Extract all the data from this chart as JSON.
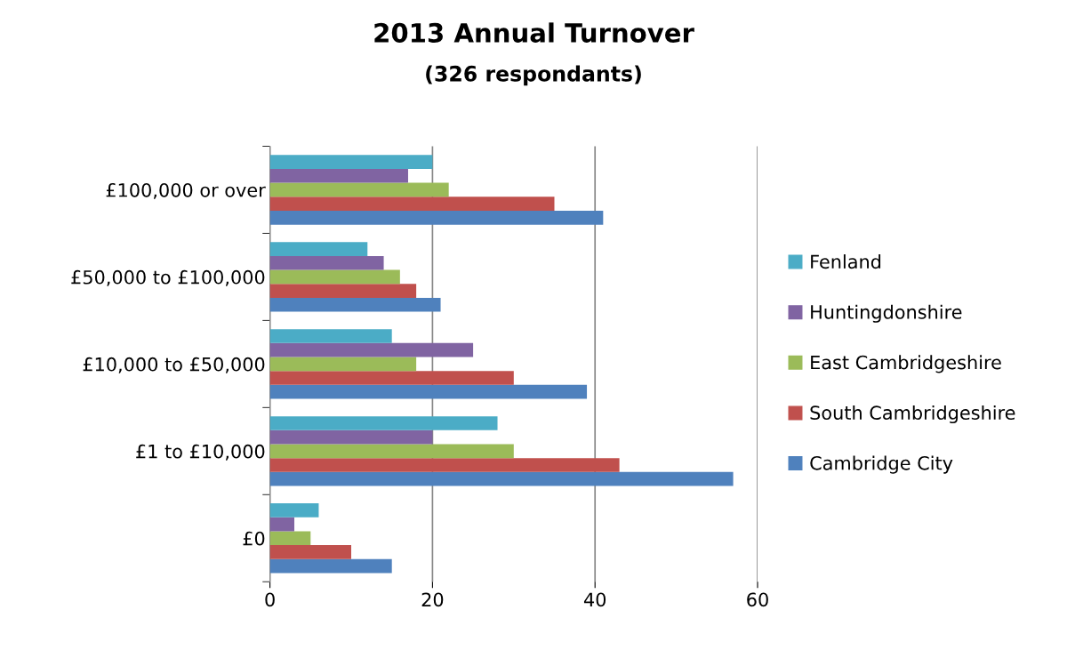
{
  "chart_data": {
    "type": "bar",
    "orientation": "horizontal",
    "title": "2013 Annual Turnover",
    "subtitle": "(326 respondants)",
    "categories": [
      "£100,000 or over",
      "£50,000 to £100,000",
      "£10,000 to £50,000",
      "£1 to £10,000",
      "£0"
    ],
    "series": [
      {
        "name": "Cambridge City",
        "color": "#4f81bd",
        "values": [
          41,
          21,
          39,
          57,
          15
        ]
      },
      {
        "name": "South Cambridgeshire",
        "color": "#c0504d",
        "values": [
          35,
          18,
          30,
          43,
          10
        ]
      },
      {
        "name": "East Cambridgeshire",
        "color": "#9bbb59",
        "values": [
          22,
          16,
          18,
          30,
          5
        ]
      },
      {
        "name": "Huntingdonshire",
        "color": "#8064a2",
        "values": [
          17,
          14,
          25,
          20,
          3
        ]
      },
      {
        "name": "Fenland",
        "color": "#4bacc6",
        "values": [
          20,
          12,
          15,
          28,
          6
        ]
      }
    ],
    "xlim": [
      0,
      60
    ],
    "xticks": [
      0,
      20,
      40,
      60
    ],
    "grid": "x",
    "legend": "right"
  }
}
